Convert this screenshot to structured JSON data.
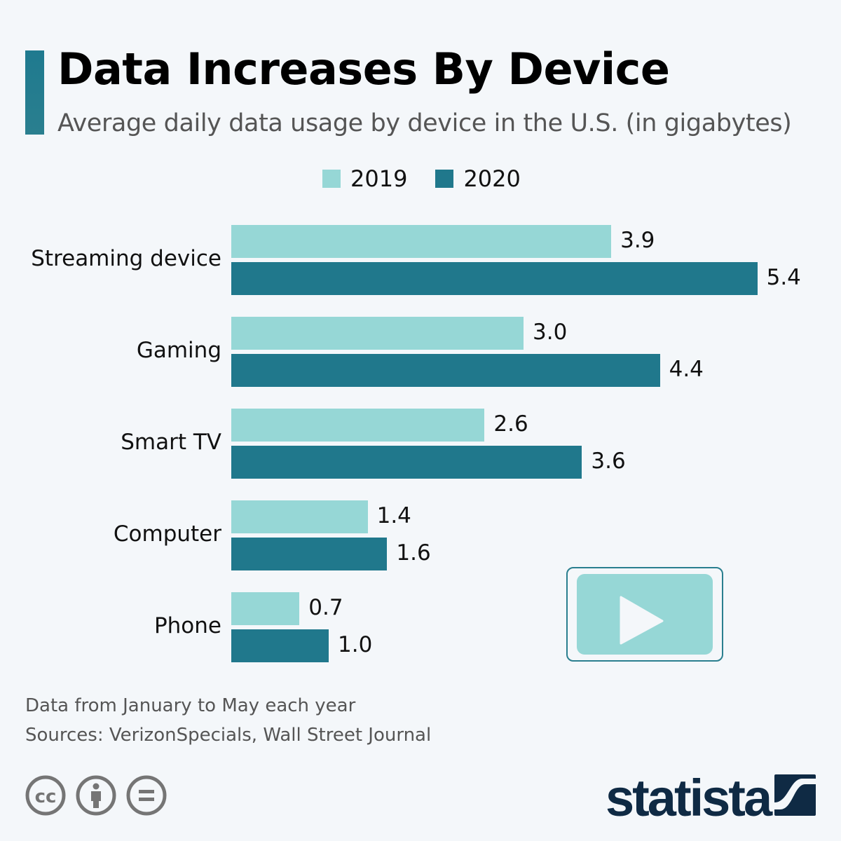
{
  "title": "Data Increases By Device",
  "subtitle": "Average daily data usage by device in the U.S. (in gigabytes)",
  "notes": {
    "line1": "Data from January to May each year",
    "line2": "Sources: VerizonSpecials, Wall Street Journal"
  },
  "logo": "statista",
  "icons": [
    "play-video-icon",
    "creative-commons-icon",
    "attribution-icon",
    "no-derivatives-icon"
  ],
  "colors": {
    "2019": "#96d7d6",
    "2020": "#20788c",
    "background": "#f4f7fa"
  },
  "chart_data": {
    "type": "bar",
    "orientation": "horizontal",
    "categories": [
      "Streaming device",
      "Gaming",
      "Smart TV",
      "Computer",
      "Phone"
    ],
    "series": [
      {
        "name": "2019",
        "values": [
          3.9,
          3.0,
          2.6,
          1.4,
          0.7
        ],
        "labels": [
          "3.9",
          "3.0",
          "2.6",
          "1.4",
          "0.7"
        ]
      },
      {
        "name": "2020",
        "values": [
          5.4,
          4.4,
          3.6,
          1.6,
          1.0
        ],
        "labels": [
          "5.4",
          "4.4",
          "3.6",
          "1.6",
          "1.0"
        ]
      }
    ],
    "legend": "top-center",
    "grid": false,
    "xaxis_visible": false
  }
}
